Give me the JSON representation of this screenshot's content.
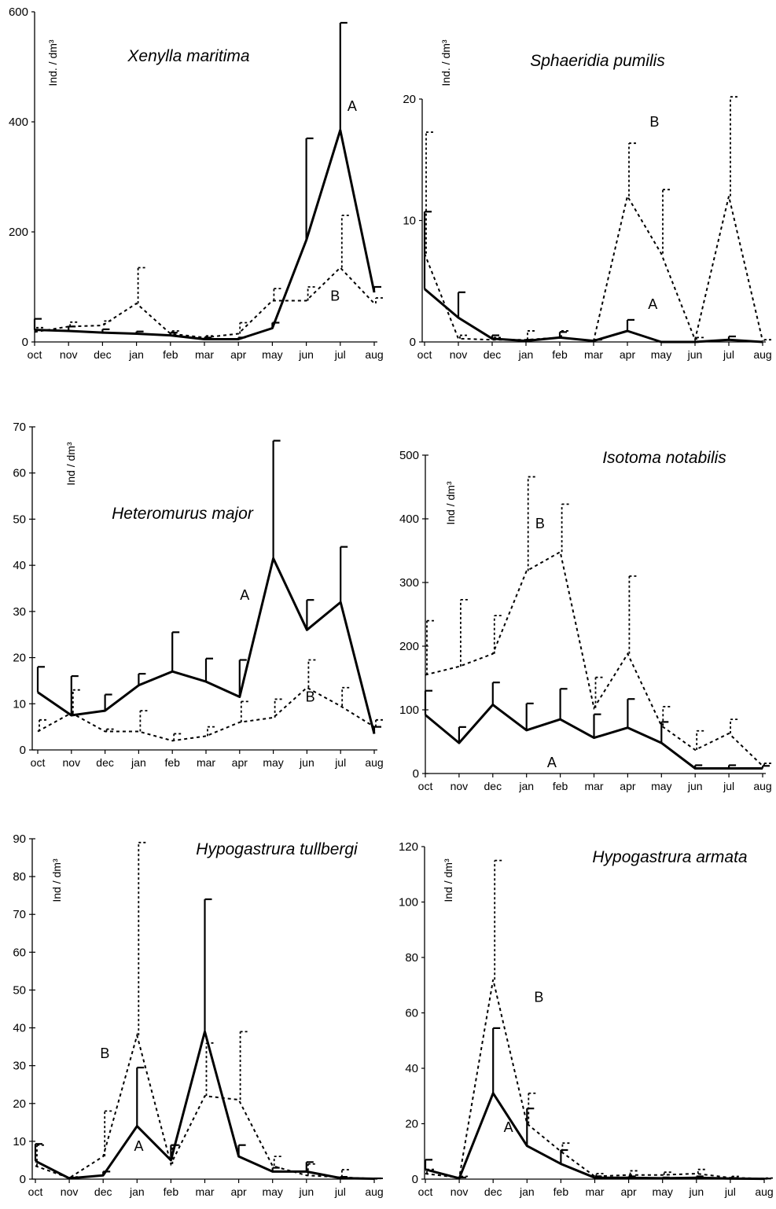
{
  "chart_data": [
    {
      "type": "line",
      "title": "Xenylla maritima",
      "ylabel": "Ind. / dm³",
      "ylim": [
        0,
        600
      ],
      "yticks": [
        "0",
        "200",
        "400",
        "600"
      ],
      "categories": [
        "oct",
        "nov",
        "dec",
        "jan",
        "feb",
        "mar",
        "apr",
        "may",
        "jun",
        "jul",
        "aug"
      ],
      "series": [
        {
          "name": "A",
          "values": [
            22,
            20,
            17,
            15,
            12,
            5,
            5,
            25,
            185,
            385,
            90
          ],
          "errors": [
            20,
            8,
            6,
            4,
            5,
            3,
            3,
            10,
            185,
            195,
            10
          ]
        },
        {
          "name": "B",
          "values": [
            18,
            28,
            30,
            70,
            15,
            8,
            15,
            75,
            75,
            135,
            70
          ],
          "errors": [
            8,
            8,
            8,
            65,
            5,
            3,
            20,
            22,
            25,
            95,
            10
          ]
        }
      ],
      "labels": [
        {
          "text": "A",
          "x": 9.35,
          "y": 420
        },
        {
          "text": "B",
          "x": 8.85,
          "y": 75
        }
      ]
    },
    {
      "type": "line",
      "title": "Sphaeridia pumilis",
      "ylabel": "Ind. / dm³",
      "ylim": [
        0,
        22
      ],
      "yticks": [
        "0",
        "10",
        "20"
      ],
      "categories": [
        "oct",
        "nov",
        "dec",
        "jan",
        "feb",
        "mar",
        "apr",
        "may",
        "jun",
        "jul",
        "aug"
      ],
      "series": [
        {
          "name": "A",
          "values": [
            4.8,
            2.2,
            0.3,
            0.1,
            0.4,
            0.1,
            1.0,
            0.0,
            0.0,
            0.2,
            0.0
          ],
          "errors": [
            7,
            2.3,
            0.3,
            0.1,
            0.5,
            0.1,
            1.0,
            0.0,
            0.0,
            0.3,
            0.0
          ]
        },
        {
          "name": "B",
          "values": [
            8.0,
            0.3,
            0.2,
            0.2,
            0.4,
            0.1,
            13.2,
            8.0,
            0.2,
            13.2,
            0.1
          ],
          "errors": [
            11,
            0.3,
            0.2,
            0.8,
            0.6,
            0.1,
            4.8,
            5.8,
            0.2,
            9.0,
            0.1
          ]
        }
      ],
      "labels": [
        {
          "text": "B",
          "x": 6.8,
          "y": 19.5
        },
        {
          "text": "A",
          "x": 6.75,
          "y": 3.0
        }
      ]
    },
    {
      "type": "line",
      "title": "Heteromurus major",
      "ylabel": "Ind / dm³",
      "ylim": [
        0,
        70
      ],
      "yticks": [
        "0",
        "10",
        "20",
        "30",
        "40",
        "50",
        "60",
        "70"
      ],
      "categories": [
        "oct",
        "nov",
        "dec",
        "jan",
        "feb",
        "mar",
        "apr",
        "may",
        "jun",
        "jul",
        "aug"
      ],
      "series": [
        {
          "name": "A",
          "values": [
            12.5,
            7.5,
            8.5,
            14.0,
            17.0,
            14.8,
            11.5,
            41.5,
            26.0,
            32.0,
            3.5
          ],
          "errors": [
            5.5,
            8.5,
            3.5,
            2.5,
            8.5,
            5.0,
            8.0,
            25.5,
            6.5,
            12.0,
            1.5
          ]
        },
        {
          "name": "B",
          "values": [
            4.0,
            8.0,
            4.0,
            4.0,
            2.0,
            3.0,
            6.0,
            7.0,
            13.5,
            9.5,
            5.0
          ],
          "errors": [
            2.5,
            5.0,
            0.5,
            4.5,
            1.5,
            2.0,
            4.5,
            4.0,
            6.0,
            4.0,
            1.5
          ]
        }
      ],
      "labels": [
        {
          "text": "A",
          "x": 6.15,
          "y": 32.5
        },
        {
          "text": "B",
          "x": 8.1,
          "y": 10.5
        }
      ]
    },
    {
      "type": "line",
      "title": "Isotoma notabilis",
      "ylabel": "Ind / dm³",
      "ylim": [
        0,
        500
      ],
      "yticks": [
        "0",
        "100",
        "200",
        "300",
        "400",
        "500"
      ],
      "categories": [
        "oct",
        "nov",
        "dec",
        "jan",
        "feb",
        "mar",
        "apr",
        "may",
        "jun",
        "jul",
        "aug"
      ],
      "series": [
        {
          "name": "A",
          "values": [
            92,
            48,
            108,
            68,
            85,
            56,
            72,
            48,
            8,
            8,
            8
          ],
          "errors": [
            38,
            25,
            35,
            42,
            48,
            37,
            45,
            33,
            5,
            5,
            4
          ]
        },
        {
          "name": "B",
          "values": [
            155,
            168,
            188,
            318,
            348,
            103,
            188,
            75,
            37,
            63,
            12
          ],
          "errors": [
            85,
            105,
            60,
            148,
            75,
            48,
            122,
            30,
            30,
            22,
            4
          ]
        }
      ],
      "labels": [
        {
          "text": "B",
          "x": 3.4,
          "y": 385
        },
        {
          "text": "A",
          "x": 3.75,
          "y": 10
        }
      ]
    },
    {
      "type": "line",
      "title": "Hypogastrura tullbergi",
      "ylabel": "Ind / dm³",
      "ylim": [
        0,
        90
      ],
      "yticks": [
        "0",
        "10",
        "20",
        "30",
        "40",
        "50",
        "60",
        "70",
        "80",
        "90"
      ],
      "categories": [
        "oct",
        "nov",
        "dec",
        "jan",
        "feb",
        "mar",
        "apr",
        "may",
        "jun",
        "jul",
        "aug"
      ],
      "series": [
        {
          "name": "A",
          "values": [
            4.8,
            0.2,
            1.0,
            14.0,
            5.0,
            39.0,
            6.0,
            2.0,
            2.0,
            0.3,
            0.1
          ],
          "errors": [
            4.5,
            0.2,
            1.0,
            15.5,
            4.0,
            35.0,
            3.0,
            1.0,
            2.5,
            0.3,
            0.1
          ]
        },
        {
          "name": "B",
          "values": [
            3.5,
            0.3,
            6.0,
            38.0,
            4.0,
            22.0,
            21.0,
            3.5,
            1.0,
            0.5,
            0.1
          ],
          "errors": [
            5.5,
            0.3,
            12.0,
            51.0,
            5.0,
            14.0,
            18.0,
            2.5,
            3.0,
            2.0,
            0.1
          ]
        }
      ],
      "labels": [
        {
          "text": "B",
          "x": 2.05,
          "y": 32
        },
        {
          "text": "A",
          "x": 3.05,
          "y": 7.5
        }
      ]
    },
    {
      "type": "line",
      "title": "Hypogastrura armata",
      "ylabel": "Ind / dm³",
      "ylim": [
        0,
        120
      ],
      "yticks": [
        "0",
        "20",
        "40",
        "60",
        "80",
        "100",
        "120"
      ],
      "categories": [
        "oct",
        "nov",
        "dec",
        "jan",
        "feb",
        "mar",
        "apr",
        "may",
        "jun",
        "jul",
        "aug"
      ],
      "series": [
        {
          "name": "A",
          "values": [
            3.5,
            0.3,
            31.0,
            12.0,
            5.5,
            0.5,
            0.5,
            0.3,
            0.5,
            0.2,
            0.1
          ],
          "errors": [
            3.5,
            0.3,
            23.5,
            13.5,
            5.0,
            0.5,
            0.5,
            0.3,
            0.5,
            0.2,
            0.1
          ]
        },
        {
          "name": "B",
          "values": [
            2.0,
            0.5,
            72.0,
            20.0,
            10.0,
            1.0,
            1.5,
            1.5,
            2.0,
            0.5,
            0.2
          ],
          "errors": [
            1.5,
            0.5,
            43.0,
            11.0,
            3.0,
            1.0,
            1.5,
            1.0,
            1.5,
            0.5,
            0.2
          ]
        }
      ],
      "labels": [
        {
          "text": "B",
          "x": 3.35,
          "y": 64
        },
        {
          "text": "A",
          "x": 2.45,
          "y": 17
        }
      ]
    }
  ]
}
